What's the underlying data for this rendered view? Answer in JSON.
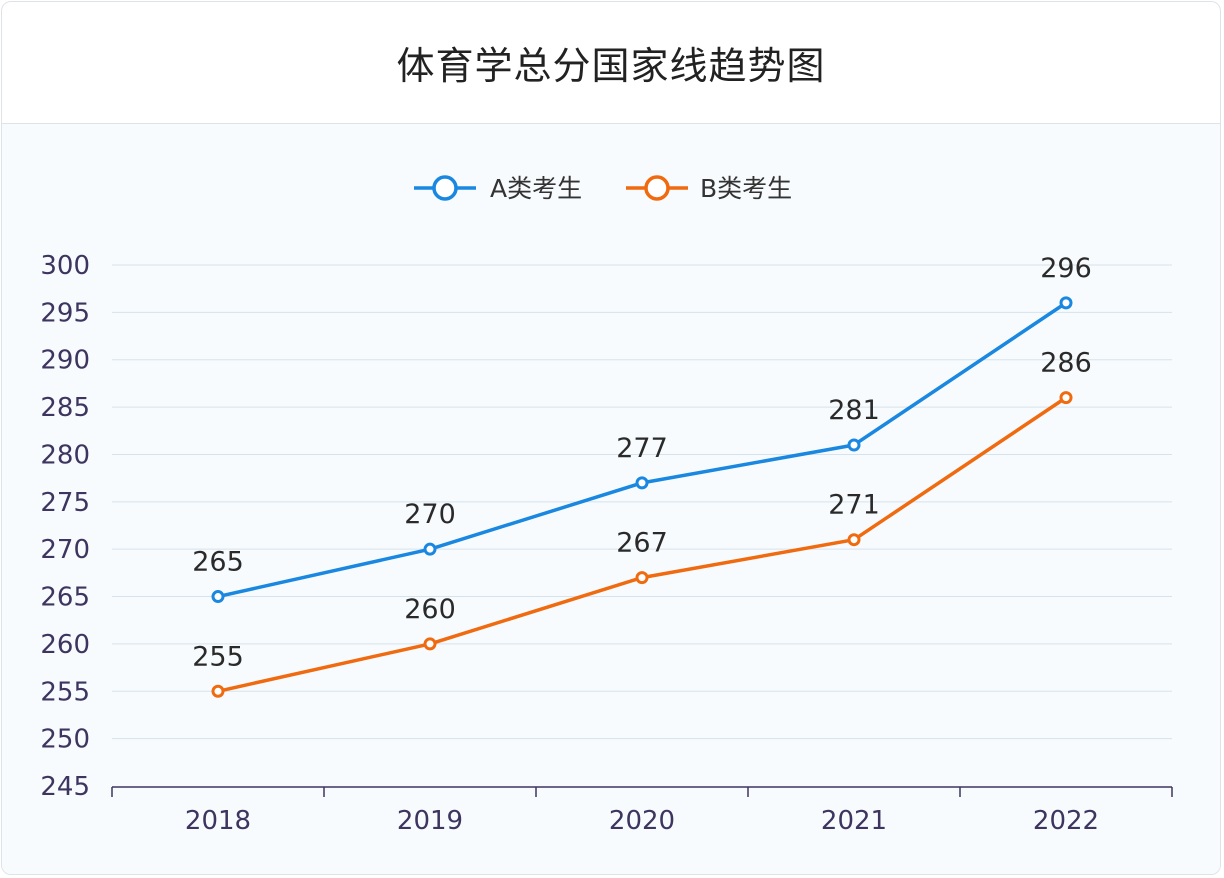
{
  "chart_data": {
    "type": "line",
    "title": "体育学总分国家线趋势图",
    "categories": [
      "2018",
      "2019",
      "2020",
      "2021",
      "2022"
    ],
    "series": [
      {
        "name": "A类考生",
        "values": [
          265,
          270,
          277,
          281,
          296
        ],
        "color": "#1a87e0"
      },
      {
        "name": "B类考生",
        "values": [
          255,
          260,
          267,
          271,
          286
        ],
        "color": "#f06a0f"
      }
    ],
    "yticks": [
      245,
      250,
      255,
      260,
      265,
      270,
      275,
      280,
      285,
      290,
      295,
      300
    ],
    "ylim": [
      245,
      300
    ],
    "grid": true,
    "legend_position": "top-center",
    "data_labels": true
  }
}
